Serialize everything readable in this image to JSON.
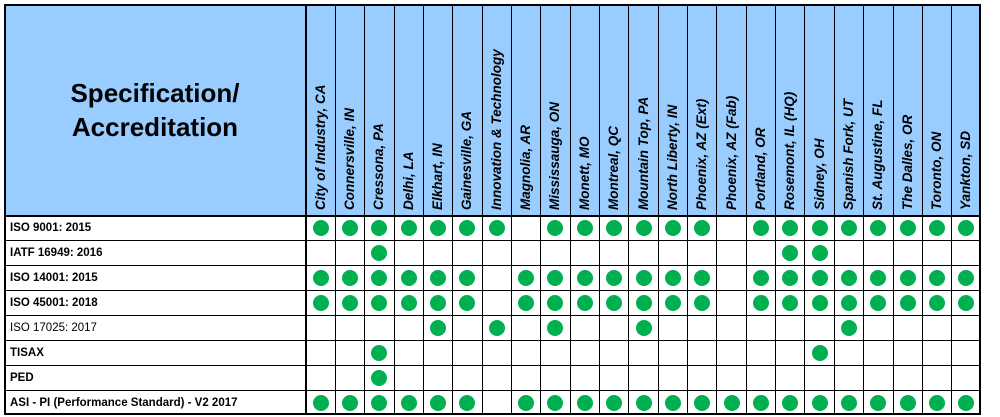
{
  "header": {
    "title_line1": "Specification/",
    "title_line2": "Accreditation"
  },
  "locations": [
    "City of Industry, CA",
    "Connersville, IN",
    "Cressona, PA",
    "Delhi, LA",
    "Elkhart, IN",
    "Gainesville, GA",
    "Innovation & Technology",
    "Magnolia, AR",
    "Mississauga, ON",
    "Monett, MO",
    "Montreal, QC",
    "Mountain Top, PA",
    "North Liberty, IN",
    "Phoenix, AZ (Ext)",
    "Phoenix, AZ (Fab)",
    "Portland, OR",
    "Rosemont, IL (HQ)",
    "Sidney, OH",
    "Spanish Fork, UT",
    "St. Augustine, FL",
    "The Dalles, OR",
    "Toronto, ON",
    "Yankton, SD"
  ],
  "rows": [
    {
      "label": "ISO 9001: 2015",
      "bold": true,
      "marks": [
        1,
        1,
        1,
        1,
        1,
        1,
        1,
        0,
        1,
        1,
        1,
        1,
        1,
        1,
        0,
        1,
        1,
        1,
        1,
        1,
        1,
        1,
        1
      ]
    },
    {
      "label": "IATF 16949: 2016",
      "bold": true,
      "marks": [
        0,
        0,
        1,
        0,
        0,
        0,
        0,
        0,
        0,
        0,
        0,
        0,
        0,
        0,
        0,
        0,
        1,
        1,
        0,
        0,
        0,
        0,
        0
      ]
    },
    {
      "label": "ISO 14001: 2015",
      "bold": true,
      "marks": [
        1,
        1,
        1,
        1,
        1,
        1,
        0,
        1,
        1,
        1,
        1,
        1,
        1,
        1,
        0,
        1,
        1,
        1,
        1,
        1,
        1,
        1,
        1
      ]
    },
    {
      "label": "ISO 45001: 2018",
      "bold": true,
      "marks": [
        1,
        1,
        1,
        1,
        1,
        1,
        0,
        1,
        1,
        1,
        1,
        1,
        1,
        1,
        0,
        1,
        1,
        1,
        1,
        1,
        1,
        1,
        1
      ]
    },
    {
      "label": "ISO 17025: 2017",
      "bold": false,
      "marks": [
        0,
        0,
        0,
        0,
        1,
        0,
        1,
        0,
        1,
        0,
        0,
        1,
        0,
        0,
        0,
        0,
        0,
        0,
        1,
        0,
        0,
        0,
        0
      ]
    },
    {
      "label": "TISAX",
      "bold": true,
      "marks": [
        0,
        0,
        1,
        0,
        0,
        0,
        0,
        0,
        0,
        0,
        0,
        0,
        0,
        0,
        0,
        0,
        0,
        1,
        0,
        0,
        0,
        0,
        0
      ]
    },
    {
      "label": "PED",
      "bold": true,
      "marks": [
        0,
        0,
        1,
        0,
        0,
        0,
        0,
        0,
        0,
        0,
        0,
        0,
        0,
        0,
        0,
        0,
        0,
        0,
        0,
        0,
        0,
        0,
        0
      ]
    },
    {
      "label": "ASI  - PI (Performance Standard) - V2 2017",
      "bold": true,
      "marks": [
        1,
        1,
        1,
        1,
        1,
        1,
        0,
        1,
        1,
        1,
        1,
        1,
        1,
        1,
        1,
        1,
        1,
        1,
        1,
        1,
        1,
        1,
        1
      ]
    }
  ],
  "colors": {
    "header_bg": "#99ccff",
    "mark": "#00b050",
    "grid": "#000000"
  }
}
